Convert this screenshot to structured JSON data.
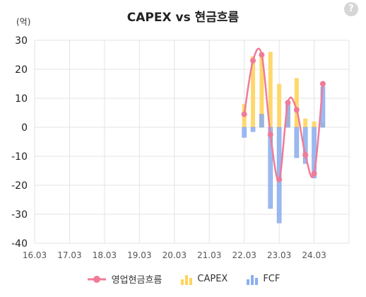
{
  "title": "CAPEX vs 현금흐름",
  "help_label": "?",
  "unit_label": "(억)",
  "colors": {
    "ocf": "#f07b98",
    "capex": "#ffd45c",
    "fcf": "#8aaef0",
    "grid": "#e3e3e3"
  },
  "chart_data": {
    "type": "bar",
    "title": "CAPEX vs 현금흐름",
    "ylabel": "(억)",
    "ylim": [
      -40,
      30
    ],
    "yticks": [
      30,
      20,
      10,
      0,
      -10,
      -20,
      -30,
      -40
    ],
    "xticks": [
      "16.03",
      "17.03",
      "18.03",
      "19.03",
      "20.03",
      "21.03",
      "22.03",
      "23.03",
      "24.03"
    ],
    "x": [
      "22.03",
      "22.06",
      "22.09",
      "22.12",
      "23.03",
      "23.06",
      "23.09",
      "23.12",
      "24.03",
      "24.06"
    ],
    "series": [
      {
        "name": "영업현금흐름",
        "type": "line",
        "values": [
          4.5,
          23,
          25,
          -2.5,
          -18,
          8.5,
          6,
          -9.5,
          -16,
          15
        ]
      },
      {
        "name": "CAPEX",
        "type": "bar",
        "values": [
          8,
          24.5,
          25.5,
          26,
          15,
          8,
          17,
          3,
          2,
          1.5
        ]
      },
      {
        "name": "FCF",
        "type": "bar",
        "values": [
          -3.5,
          -1.5,
          4.5,
          -28,
          -33,
          8,
          -10.5,
          -12.5,
          -17.5,
          14
        ]
      }
    ],
    "legend": [
      "영업현금흐름",
      "CAPEX",
      "FCF"
    ],
    "legend_position": "bottom",
    "grid": true
  }
}
